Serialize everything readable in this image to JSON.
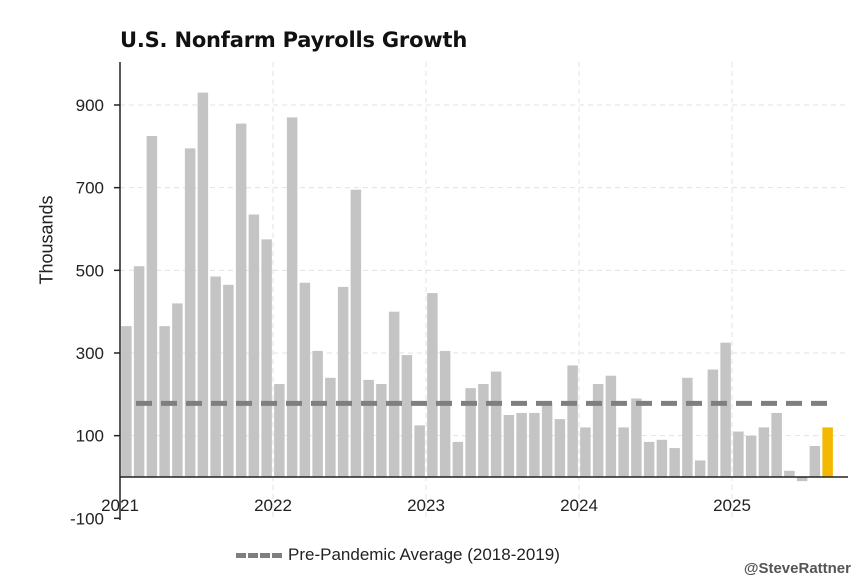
{
  "chart_data": {
    "type": "bar",
    "title": "U.S. Nonfarm Payrolls Growth",
    "ylabel": "Thousands",
    "xlabel": "",
    "ylim": [
      -100,
      1000
    ],
    "yticks": [
      -100,
      100,
      300,
      500,
      700,
      900
    ],
    "year_labels": [
      "2021",
      "2022",
      "2023",
      "2024",
      "2025"
    ],
    "months": [
      "2021-01",
      "2021-02",
      "2021-03",
      "2021-04",
      "2021-05",
      "2021-06",
      "2021-07",
      "2021-08",
      "2021-09",
      "2021-10",
      "2021-11",
      "2021-12",
      "2022-01",
      "2022-02",
      "2022-03",
      "2022-04",
      "2022-05",
      "2022-06",
      "2022-07",
      "2022-08",
      "2022-09",
      "2022-10",
      "2022-11",
      "2022-12",
      "2023-01",
      "2023-02",
      "2023-03",
      "2023-04",
      "2023-05",
      "2023-06",
      "2023-07",
      "2023-08",
      "2023-09",
      "2023-10",
      "2023-11",
      "2023-12",
      "2024-01",
      "2024-02",
      "2024-03",
      "2024-04",
      "2024-05",
      "2024-06",
      "2024-07",
      "2024-08",
      "2024-09",
      "2024-10",
      "2024-11",
      "2024-12",
      "2025-01",
      "2025-02",
      "2025-03",
      "2025-04",
      "2025-05",
      "2025-06",
      "2025-07",
      "2025-08"
    ],
    "values": [
      365,
      510,
      825,
      365,
      420,
      795,
      930,
      485,
      465,
      855,
      635,
      575,
      225,
      870,
      470,
      305,
      240,
      460,
      695,
      235,
      225,
      400,
      295,
      125,
      445,
      305,
      85,
      215,
      225,
      255,
      150,
      155,
      155,
      180,
      140,
      270,
      120,
      225,
      245,
      120,
      190,
      85,
      90,
      70,
      240,
      40,
      260,
      325,
      110,
      100,
      120,
      155,
      15,
      -10,
      75,
      120
    ],
    "highlight_index": 55,
    "colors": {
      "bar": "#c4c4c4",
      "highlight": "#f5b800",
      "average": "#7f7f7f",
      "grid": "#e3e3e3"
    },
    "reference_line": {
      "name": "Pre-Pandemic Average (2018-2019)",
      "value": 178,
      "style": "dashed"
    },
    "legend_position": "bottom-center",
    "grid": true
  },
  "credit": "@SteveRattner"
}
